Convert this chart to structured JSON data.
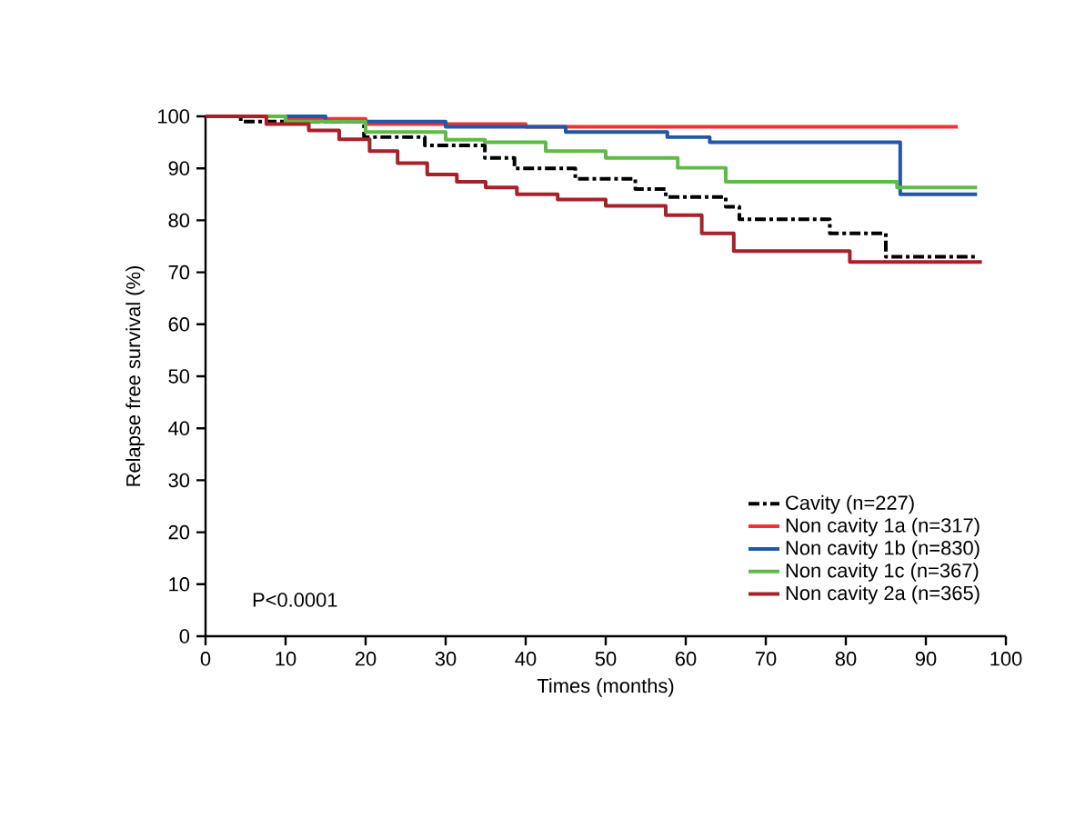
{
  "chart_data": {
    "type": "step",
    "xlabel": "Times (months)",
    "ylabel": "Relapse free survival (%)",
    "xlim": [
      0,
      100
    ],
    "ylim": [
      0,
      100
    ],
    "xticks": [
      0,
      10,
      20,
      30,
      40,
      50,
      60,
      70,
      80,
      90,
      100
    ],
    "yticks": [
      0,
      10,
      20,
      30,
      40,
      50,
      60,
      70,
      80,
      90,
      100
    ],
    "legend": "bottom right",
    "grid": false,
    "annotations": [
      "P<0.0001"
    ],
    "series": [
      {
        "name": "Cavity (n=227)",
        "color": "#000000",
        "line_style": "dashed",
        "x": [
          0,
          4.4,
          19.8,
          27.4,
          34.9,
          38.6,
          46.2,
          53.7,
          57.5,
          65,
          66.7,
          78,
          85,
          96.4
        ],
        "values": [
          100,
          99,
          96,
          94.4,
          92,
          90,
          88,
          86,
          84.5,
          82.6,
          80.2,
          77.5,
          73,
          73
        ]
      },
      {
        "name": "Non cavity 1a (n=317)",
        "color": "#ee3237",
        "line_style": "solid",
        "x": [
          0,
          10,
          20,
          40,
          94
        ],
        "values": [
          100,
          99.5,
          98.5,
          98,
          98
        ]
      },
      {
        "name": "Non cavity 1b (n=830)",
        "color": "#2257a8",
        "line_style": "solid",
        "x": [
          0,
          15,
          30,
          45,
          57.7,
          63,
          86.8,
          96.4
        ],
        "values": [
          100,
          99,
          98,
          97,
          96,
          95,
          85,
          85
        ]
      },
      {
        "name": "Non cavity 1c (n=367)",
        "color": "#5dbb46",
        "line_style": "solid",
        "x": [
          0,
          10,
          20,
          30,
          34.9,
          42.5,
          50,
          59,
          65,
          86.4,
          96.4
        ],
        "values": [
          100,
          99,
          97,
          95.5,
          95,
          93.3,
          92,
          90.1,
          87.4,
          86.3,
          86.3
        ]
      },
      {
        "name": "Non cavity 2a (n=365)",
        "color": "#a8202a",
        "line_style": "solid",
        "x": [
          0,
          3,
          7.6,
          12.9,
          16.7,
          20.5,
          24,
          27.7,
          31.4,
          35,
          38.9,
          44,
          50,
          57.5,
          62,
          66,
          80.5,
          97
        ],
        "values": [
          100,
          100,
          98.5,
          97.3,
          95.6,
          93.3,
          91,
          88.8,
          87.4,
          86.3,
          85,
          84,
          82.8,
          81,
          77.5,
          74.1,
          72,
          72
        ]
      }
    ]
  }
}
